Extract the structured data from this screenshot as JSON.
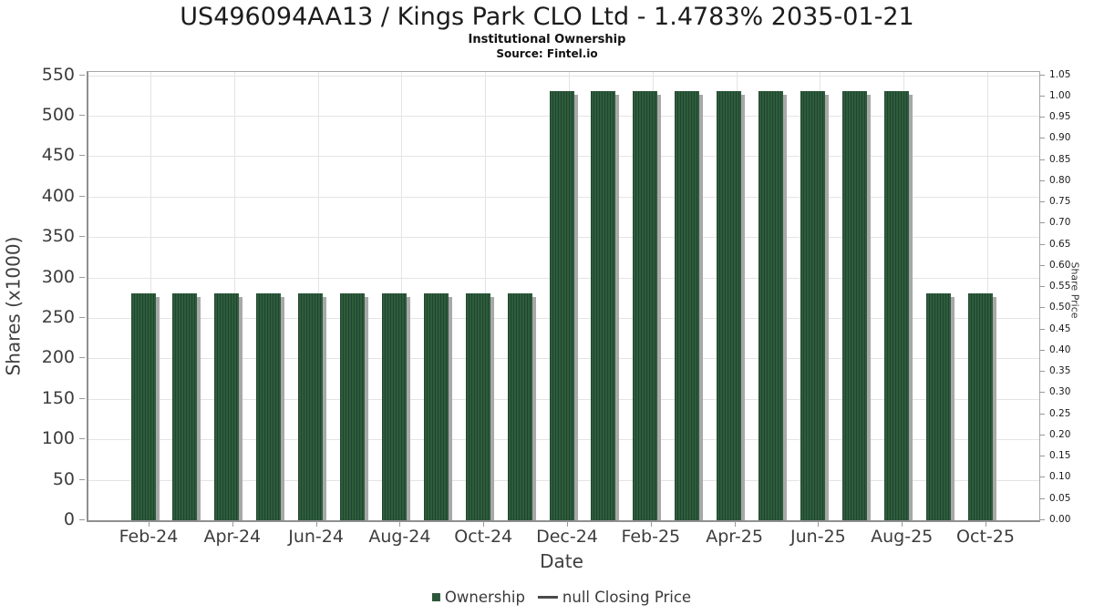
{
  "header": {
    "title": "US496094AA13 / Kings Park CLO Ltd - 1.4783% 2035-01-21",
    "subtitle": "Institutional Ownership",
    "source": "Source: Fintel.io"
  },
  "chart_data": {
    "type": "bar",
    "title": "US496094AA13 / Kings Park CLO Ltd - 1.4783% 2035-01-21",
    "subtitle": "Institutional Ownership",
    "source": "Source: Fintel.io",
    "xlabel": "Date",
    "ylabel_left": "Shares (x1000)",
    "ylabel_right": "Share Price",
    "x": [
      "2024-01-31",
      "2024-02-29",
      "2024-03-31",
      "2024-04-30",
      "2024-05-31",
      "2024-06-30",
      "2024-07-31",
      "2024-08-31",
      "2024-09-30",
      "2024-10-31",
      "2024-11-30",
      "2024-12-31",
      "2025-01-31",
      "2025-02-28",
      "2025-03-31",
      "2025-04-30",
      "2025-05-31",
      "2025-06-30",
      "2025-07-31",
      "2025-08-31",
      "2025-09-30"
    ],
    "series": [
      {
        "name": "Ownership",
        "type": "bar",
        "axis": "left",
        "values": [
          280,
          280,
          280,
          280,
          280,
          280,
          280,
          280,
          280,
          280,
          530,
          530,
          530,
          530,
          530,
          530,
          530,
          530,
          530,
          280,
          280
        ]
      },
      {
        "name": "null Closing Price",
        "type": "line",
        "axis": "right",
        "values": []
      }
    ],
    "ylim_left": [
      0,
      550
    ],
    "ylim_right": [
      0,
      1.05
    ],
    "left_tick_labels": [
      "0",
      "50",
      "100",
      "150",
      "200",
      "250",
      "300",
      "350",
      "400",
      "450",
      "500",
      "550"
    ],
    "right_tick_labels": [
      "0.00",
      "0.05",
      "0.10",
      "0.15",
      "0.20",
      "0.25",
      "0.30",
      "0.35",
      "0.40",
      "0.45",
      "0.50",
      "0.55",
      "0.60",
      "0.65",
      "0.70",
      "0.75",
      "0.80",
      "0.85",
      "0.90",
      "0.95",
      "1.00",
      "1.05"
    ],
    "x_tick_labels": [
      "Feb-24",
      "Apr-24",
      "Jun-24",
      "Aug-24",
      "Oct-24",
      "Dec-24",
      "Feb-25",
      "Apr-25",
      "Jun-25",
      "Aug-25",
      "Oct-25"
    ],
    "x_tick_every": 2,
    "grid": "horizontal lines at every 50; vertical lines at labeled date ticks",
    "legend_position": "bottom",
    "colors": {
      "bar_fill": "#2e5c3d",
      "bar_hatch": "#1f462c",
      "bar_shadow": "#a8a8a8",
      "grid": "#e4e4e4",
      "spine": "#8f8f8f",
      "tick": "#999999",
      "legend_swatch": "#2d573b",
      "legend_line": "#4a4a4a"
    }
  },
  "legend": {
    "items": [
      {
        "label": "Ownership",
        "marker": "square"
      },
      {
        "label": "null Closing Price",
        "marker": "line"
      }
    ]
  }
}
